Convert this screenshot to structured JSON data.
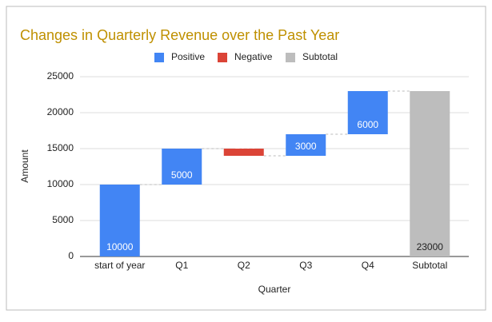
{
  "chart_data": {
    "type": "waterfall",
    "title": "Changes in Quarterly Revenue over the Past Year",
    "x_label": "Quarter",
    "y_label": "Amount",
    "categories": [
      "start of year",
      "Q1",
      "Q2",
      "Q3",
      "Q4",
      "Subtotal"
    ],
    "series": [
      {
        "name": "Positive",
        "color": "#4285f4",
        "values": [
          10000,
          5000,
          null,
          3000,
          6000,
          null
        ]
      },
      {
        "name": "Negative",
        "color": "#db4437",
        "values": [
          null,
          null,
          -1000,
          null,
          null,
          null
        ]
      },
      {
        "name": "Subtotal",
        "color": "#bdbdbd",
        "values": [
          null,
          null,
          null,
          null,
          null,
          23000
        ]
      }
    ],
    "ylim": [
      0,
      25000
    ],
    "yticks": [
      0,
      5000,
      10000,
      15000,
      20000,
      25000
    ],
    "grid": true
  }
}
